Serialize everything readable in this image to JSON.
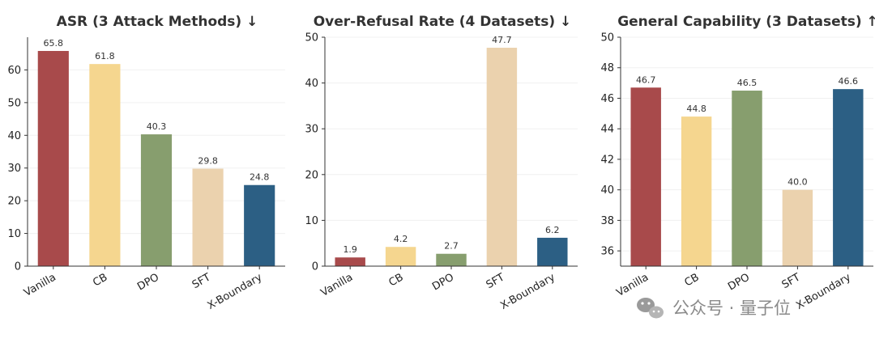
{
  "chart_data": [
    {
      "type": "bar",
      "title": "ASR (3 Attack Methods) ↓",
      "categories": [
        "Vanilla",
        "CB",
        "DPO",
        "SFT",
        "X-Boundary"
      ],
      "values": [
        65.8,
        61.8,
        40.3,
        29.8,
        24.8
      ],
      "data_labels": [
        "65.8",
        "61.8",
        "40.3",
        "29.8",
        "24.8"
      ],
      "ylim": [
        0,
        70
      ],
      "yticks": [
        0,
        10,
        20,
        30,
        40,
        50,
        60
      ],
      "grid": true
    },
    {
      "type": "bar",
      "title": "Over-Refusal Rate (4 Datasets) ↓",
      "categories": [
        "Vanilla",
        "CB",
        "DPO",
        "SFT",
        "X-Boundary"
      ],
      "values": [
        1.9,
        4.2,
        2.7,
        47.7,
        6.2
      ],
      "data_labels": [
        "1.9",
        "4.2",
        "2.7",
        "47.7",
        "6.2"
      ],
      "ylim": [
        0,
        50
      ],
      "yticks": [
        0,
        10,
        20,
        30,
        40,
        50
      ],
      "grid": true
    },
    {
      "type": "bar",
      "title": "General Capability (3 Datasets) ↑",
      "categories": [
        "Vanilla",
        "CB",
        "DPO",
        "SFT",
        "X-Boundary"
      ],
      "values": [
        46.7,
        44.8,
        46.5,
        40.0,
        46.6
      ],
      "data_labels": [
        "46.7",
        "44.8",
        "46.5",
        "40.0",
        "46.6"
      ],
      "ylim": [
        35,
        50
      ],
      "yticks": [
        36,
        38,
        40,
        42,
        44,
        46,
        48,
        50
      ],
      "grid": true
    }
  ],
  "bar_colors": [
    "#a84a4b",
    "#f5d68f",
    "#879e6e",
    "#ebd2ae",
    "#2c5f84"
  ],
  "watermark": {
    "icon": "wechat-icon",
    "text": "公众号 · 量子位"
  }
}
